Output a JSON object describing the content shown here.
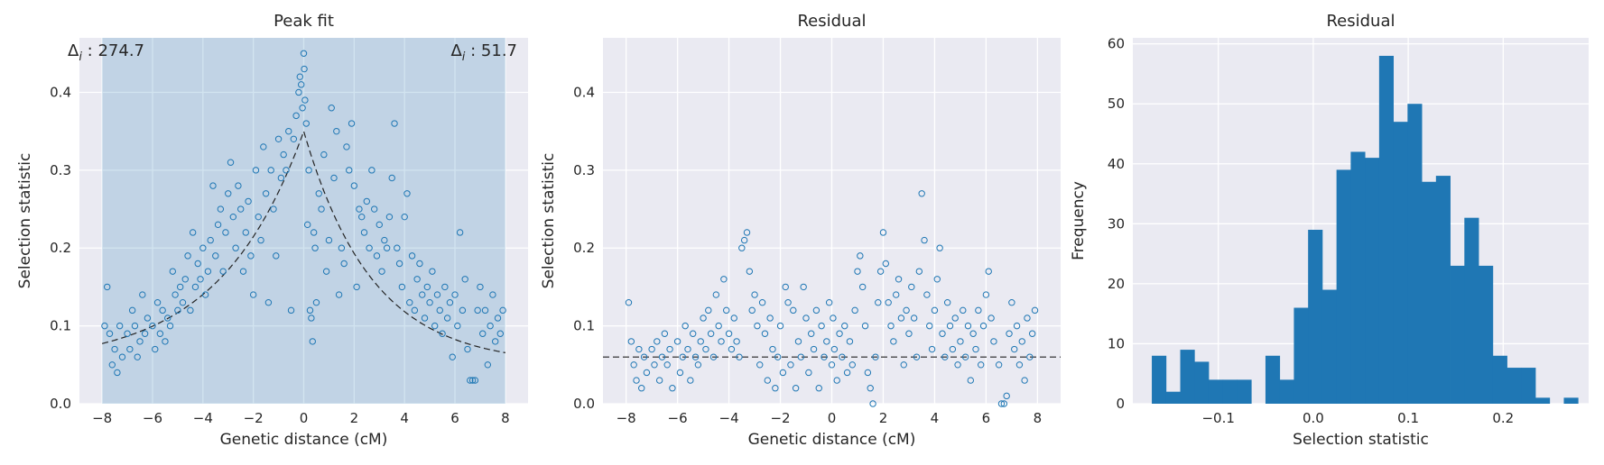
{
  "chart_data": [
    {
      "type": "scatter",
      "title": "Peak fit",
      "xlabel": "Genetic distance (cM)",
      "ylabel": "Selection statistic",
      "xlim": [
        -8.9,
        8.9
      ],
      "ylim": [
        0,
        0.47
      ],
      "xticks": [
        -8,
        -6,
        -4,
        -2,
        0,
        2,
        4,
        6,
        8
      ],
      "xtick_labels": [
        "−8",
        "−6",
        "−4",
        "−2",
        "0",
        "2",
        "4",
        "6",
        "8"
      ],
      "yticks": [
        0.0,
        0.1,
        0.2,
        0.3,
        0.4
      ],
      "ytick_labels": [
        "0.0",
        "0.1",
        "0.2",
        "0.3",
        "0.4"
      ],
      "grid": true,
      "shaded_region": [
        -8,
        8
      ],
      "annotations": [
        {
          "text": "Δ",
          "sub": "i",
          "rest": " : 274.7",
          "position": "top-left"
        },
        {
          "text": "Δ",
          "sub": "i",
          "rest": " : 51.7",
          "position": "top-right"
        }
      ],
      "fit_curve": {
        "style": "dashed",
        "color": "#222222",
        "peak_x": 0.0,
        "peak_y": 0.35,
        "baseline": 0.05,
        "decay_left": 0.3,
        "decay_right": 0.37
      },
      "points": [
        [
          -7.9,
          0.1
        ],
        [
          -7.8,
          0.15
        ],
        [
          -7.7,
          0.09
        ],
        [
          -7.6,
          0.05
        ],
        [
          -7.5,
          0.07
        ],
        [
          -7.4,
          0.04
        ],
        [
          -7.3,
          0.1
        ],
        [
          -7.2,
          0.06
        ],
        [
          -7.0,
          0.09
        ],
        [
          -6.9,
          0.07
        ],
        [
          -6.8,
          0.12
        ],
        [
          -6.7,
          0.1
        ],
        [
          -6.6,
          0.06
        ],
        [
          -6.5,
          0.08
        ],
        [
          -6.4,
          0.14
        ],
        [
          -6.3,
          0.09
        ],
        [
          -6.2,
          0.11
        ],
        [
          -6.0,
          0.1
        ],
        [
          -5.9,
          0.07
        ],
        [
          -5.8,
          0.13
        ],
        [
          -5.7,
          0.09
        ],
        [
          -5.6,
          0.12
        ],
        [
          -5.5,
          0.08
        ],
        [
          -5.4,
          0.11
        ],
        [
          -5.3,
          0.1
        ],
        [
          -5.2,
          0.17
        ],
        [
          -5.1,
          0.14
        ],
        [
          -5.0,
          0.12
        ],
        [
          -4.9,
          0.15
        ],
        [
          -4.8,
          0.13
        ],
        [
          -4.7,
          0.16
        ],
        [
          -4.6,
          0.19
        ],
        [
          -4.5,
          0.12
        ],
        [
          -4.4,
          0.22
        ],
        [
          -4.3,
          0.15
        ],
        [
          -4.2,
          0.18
        ],
        [
          -4.1,
          0.16
        ],
        [
          -4.0,
          0.2
        ],
        [
          -3.9,
          0.14
        ],
        [
          -3.8,
          0.17
        ],
        [
          -3.7,
          0.21
        ],
        [
          -3.6,
          0.28
        ],
        [
          -3.5,
          0.19
        ],
        [
          -3.4,
          0.23
        ],
        [
          -3.3,
          0.25
        ],
        [
          -3.2,
          0.17
        ],
        [
          -3.1,
          0.22
        ],
        [
          -3.0,
          0.27
        ],
        [
          -2.9,
          0.31
        ],
        [
          -2.8,
          0.24
        ],
        [
          -2.7,
          0.2
        ],
        [
          -2.6,
          0.28
        ],
        [
          -2.5,
          0.25
        ],
        [
          -2.4,
          0.17
        ],
        [
          -2.3,
          0.22
        ],
        [
          -2.2,
          0.26
        ],
        [
          -2.1,
          0.19
        ],
        [
          -2.0,
          0.14
        ],
        [
          -1.9,
          0.3
        ],
        [
          -1.8,
          0.24
        ],
        [
          -1.7,
          0.21
        ],
        [
          -1.6,
          0.33
        ],
        [
          -1.5,
          0.27
        ],
        [
          -1.4,
          0.13
        ],
        [
          -1.3,
          0.3
        ],
        [
          -1.2,
          0.25
        ],
        [
          -1.1,
          0.19
        ],
        [
          -1.0,
          0.34
        ],
        [
          -0.9,
          0.29
        ],
        [
          -0.8,
          0.32
        ],
        [
          -0.7,
          0.3
        ],
        [
          -0.6,
          0.35
        ],
        [
          -0.5,
          0.12
        ],
        [
          -0.4,
          0.34
        ],
        [
          -0.3,
          0.37
        ],
        [
          -0.2,
          0.4
        ],
        [
          -0.15,
          0.42
        ],
        [
          -0.1,
          0.41
        ],
        [
          -0.05,
          0.38
        ],
        [
          0.0,
          0.45
        ],
        [
          0.02,
          0.43
        ],
        [
          0.05,
          0.39
        ],
        [
          0.1,
          0.36
        ],
        [
          0.15,
          0.23
        ],
        [
          0.2,
          0.3
        ],
        [
          0.25,
          0.12
        ],
        [
          0.3,
          0.11
        ],
        [
          0.35,
          0.08
        ],
        [
          0.4,
          0.22
        ],
        [
          0.45,
          0.2
        ],
        [
          0.5,
          0.13
        ],
        [
          0.6,
          0.27
        ],
        [
          0.7,
          0.25
        ],
        [
          0.8,
          0.32
        ],
        [
          0.9,
          0.17
        ],
        [
          1.0,
          0.21
        ],
        [
          1.1,
          0.38
        ],
        [
          1.2,
          0.29
        ],
        [
          1.3,
          0.35
        ],
        [
          1.4,
          0.14
        ],
        [
          1.5,
          0.2
        ],
        [
          1.6,
          0.18
        ],
        [
          1.7,
          0.33
        ],
        [
          1.8,
          0.3
        ],
        [
          1.9,
          0.36
        ],
        [
          2.0,
          0.28
        ],
        [
          2.1,
          0.15
        ],
        [
          2.2,
          0.25
        ],
        [
          2.3,
          0.24
        ],
        [
          2.4,
          0.22
        ],
        [
          2.5,
          0.26
        ],
        [
          2.6,
          0.2
        ],
        [
          2.7,
          0.3
        ],
        [
          2.8,
          0.25
        ],
        [
          2.9,
          0.19
        ],
        [
          3.0,
          0.23
        ],
        [
          3.1,
          0.17
        ],
        [
          3.2,
          0.21
        ],
        [
          3.3,
          0.2
        ],
        [
          3.4,
          0.24
        ],
        [
          3.5,
          0.29
        ],
        [
          3.6,
          0.36
        ],
        [
          3.7,
          0.2
        ],
        [
          3.8,
          0.18
        ],
        [
          3.9,
          0.15
        ],
        [
          4.0,
          0.24
        ],
        [
          4.1,
          0.27
        ],
        [
          4.2,
          0.13
        ],
        [
          4.3,
          0.19
        ],
        [
          4.4,
          0.12
        ],
        [
          4.5,
          0.16
        ],
        [
          4.6,
          0.18
        ],
        [
          4.7,
          0.14
        ],
        [
          4.8,
          0.11
        ],
        [
          4.9,
          0.15
        ],
        [
          5.0,
          0.13
        ],
        [
          5.1,
          0.17
        ],
        [
          5.2,
          0.1
        ],
        [
          5.3,
          0.14
        ],
        [
          5.4,
          0.12
        ],
        [
          5.5,
          0.09
        ],
        [
          5.6,
          0.15
        ],
        [
          5.7,
          0.11
        ],
        [
          5.8,
          0.13
        ],
        [
          5.9,
          0.06
        ],
        [
          6.0,
          0.14
        ],
        [
          6.1,
          0.1
        ],
        [
          6.2,
          0.22
        ],
        [
          6.3,
          0.12
        ],
        [
          6.4,
          0.16
        ],
        [
          6.5,
          0.07
        ],
        [
          6.6,
          0.03
        ],
        [
          6.7,
          0.03
        ],
        [
          6.8,
          0.03
        ],
        [
          6.9,
          0.12
        ],
        [
          7.0,
          0.15
        ],
        [
          7.1,
          0.09
        ],
        [
          7.2,
          0.12
        ],
        [
          7.3,
          0.05
        ],
        [
          7.4,
          0.1
        ],
        [
          7.5,
          0.14
        ],
        [
          7.6,
          0.08
        ],
        [
          7.7,
          0.11
        ],
        [
          7.8,
          0.09
        ],
        [
          7.9,
          0.12
        ]
      ]
    },
    {
      "type": "scatter",
      "title": "Residual",
      "xlabel": "Genetic distance (cM)",
      "ylabel": "Selection statistic",
      "xlim": [
        -8.9,
        8.9
      ],
      "ylim": [
        0,
        0.47
      ],
      "xticks": [
        -8,
        -6,
        -4,
        -2,
        0,
        2,
        4,
        6,
        8
      ],
      "xtick_labels": [
        "−8",
        "−6",
        "−4",
        "−2",
        "0",
        "2",
        "4",
        "6",
        "8"
      ],
      "yticks": [
        0.0,
        0.1,
        0.2,
        0.3,
        0.4
      ],
      "ytick_labels": [
        "0.0",
        "0.1",
        "0.2",
        "0.3",
        "0.4"
      ],
      "grid": true,
      "hline": {
        "y": 0.06,
        "style": "dashed",
        "color": "#222222"
      },
      "points": [
        [
          -7.9,
          0.13
        ],
        [
          -7.8,
          0.08
        ],
        [
          -7.7,
          0.05
        ],
        [
          -7.6,
          0.03
        ],
        [
          -7.5,
          0.07
        ],
        [
          -7.4,
          0.02
        ],
        [
          -7.3,
          0.06
        ],
        [
          -7.2,
          0.04
        ],
        [
          -7.0,
          0.07
        ],
        [
          -6.9,
          0.05
        ],
        [
          -6.8,
          0.08
        ],
        [
          -6.7,
          0.03
        ],
        [
          -6.6,
          0.06
        ],
        [
          -6.5,
          0.09
        ],
        [
          -6.4,
          0.05
        ],
        [
          -6.3,
          0.07
        ],
        [
          -6.2,
          0.02
        ],
        [
          -6.0,
          0.08
        ],
        [
          -5.9,
          0.04
        ],
        [
          -5.8,
          0.06
        ],
        [
          -5.7,
          0.1
        ],
        [
          -5.6,
          0.07
        ],
        [
          -5.5,
          0.03
        ],
        [
          -5.4,
          0.09
        ],
        [
          -5.3,
          0.06
        ],
        [
          -5.2,
          0.05
        ],
        [
          -5.1,
          0.08
        ],
        [
          -5.0,
          0.11
        ],
        [
          -4.9,
          0.07
        ],
        [
          -4.8,
          0.12
        ],
        [
          -4.7,
          0.09
        ],
        [
          -4.6,
          0.06
        ],
        [
          -4.5,
          0.14
        ],
        [
          -4.4,
          0.1
        ],
        [
          -4.3,
          0.08
        ],
        [
          -4.2,
          0.16
        ],
        [
          -4.1,
          0.12
        ],
        [
          -4.0,
          0.09
        ],
        [
          -3.9,
          0.07
        ],
        [
          -3.8,
          0.11
        ],
        [
          -3.7,
          0.08
        ],
        [
          -3.6,
          0.06
        ],
        [
          -3.5,
          0.2
        ],
        [
          -3.4,
          0.21
        ],
        [
          -3.3,
          0.22
        ],
        [
          -3.2,
          0.17
        ],
        [
          -3.1,
          0.12
        ],
        [
          -3.0,
          0.14
        ],
        [
          -2.9,
          0.1
        ],
        [
          -2.8,
          0.05
        ],
        [
          -2.7,
          0.13
        ],
        [
          -2.6,
          0.09
        ],
        [
          -2.5,
          0.03
        ],
        [
          -2.4,
          0.11
        ],
        [
          -2.3,
          0.07
        ],
        [
          -2.2,
          0.02
        ],
        [
          -2.1,
          0.06
        ],
        [
          -2.0,
          0.1
        ],
        [
          -1.9,
          0.04
        ],
        [
          -1.8,
          0.15
        ],
        [
          -1.7,
          0.13
        ],
        [
          -1.6,
          0.05
        ],
        [
          -1.5,
          0.12
        ],
        [
          -1.4,
          0.02
        ],
        [
          -1.3,
          0.08
        ],
        [
          -1.2,
          0.06
        ],
        [
          -1.1,
          0.15
        ],
        [
          -1.0,
          0.11
        ],
        [
          -0.9,
          0.04
        ],
        [
          -0.8,
          0.09
        ],
        [
          -0.7,
          0.07
        ],
        [
          -0.6,
          0.12
        ],
        [
          -0.5,
          0.02
        ],
        [
          -0.4,
          0.1
        ],
        [
          -0.3,
          0.06
        ],
        [
          -0.2,
          0.08
        ],
        [
          -0.1,
          0.13
        ],
        [
          0.0,
          0.05
        ],
        [
          0.05,
          0.11
        ],
        [
          0.1,
          0.07
        ],
        [
          0.2,
          0.03
        ],
        [
          0.3,
          0.09
        ],
        [
          0.4,
          0.06
        ],
        [
          0.5,
          0.1
        ],
        [
          0.6,
          0.04
        ],
        [
          0.7,
          0.08
        ],
        [
          0.8,
          0.05
        ],
        [
          0.9,
          0.12
        ],
        [
          1.0,
          0.17
        ],
        [
          1.1,
          0.19
        ],
        [
          1.2,
          0.15
        ],
        [
          1.3,
          0.1
        ],
        [
          1.4,
          0.04
        ],
        [
          1.5,
          0.02
        ],
        [
          1.6,
          0.0
        ],
        [
          1.7,
          0.06
        ],
        [
          1.8,
          0.13
        ],
        [
          1.9,
          0.17
        ],
        [
          2.0,
          0.22
        ],
        [
          2.1,
          0.18
        ],
        [
          2.2,
          0.13
        ],
        [
          2.3,
          0.1
        ],
        [
          2.4,
          0.08
        ],
        [
          2.5,
          0.14
        ],
        [
          2.6,
          0.16
        ],
        [
          2.7,
          0.11
        ],
        [
          2.8,
          0.05
        ],
        [
          2.9,
          0.12
        ],
        [
          3.0,
          0.09
        ],
        [
          3.1,
          0.15
        ],
        [
          3.2,
          0.11
        ],
        [
          3.3,
          0.06
        ],
        [
          3.4,
          0.17
        ],
        [
          3.5,
          0.27
        ],
        [
          3.6,
          0.21
        ],
        [
          3.7,
          0.14
        ],
        [
          3.8,
          0.1
        ],
        [
          3.9,
          0.07
        ],
        [
          4.0,
          0.12
        ],
        [
          4.1,
          0.16
        ],
        [
          4.2,
          0.2
        ],
        [
          4.3,
          0.09
        ],
        [
          4.4,
          0.06
        ],
        [
          4.5,
          0.13
        ],
        [
          4.6,
          0.1
        ],
        [
          4.7,
          0.07
        ],
        [
          4.8,
          0.11
        ],
        [
          4.9,
          0.05
        ],
        [
          5.0,
          0.08
        ],
        [
          5.1,
          0.12
        ],
        [
          5.2,
          0.06
        ],
        [
          5.3,
          0.1
        ],
        [
          5.4,
          0.03
        ],
        [
          5.5,
          0.09
        ],
        [
          5.6,
          0.07
        ],
        [
          5.7,
          0.12
        ],
        [
          5.8,
          0.05
        ],
        [
          5.9,
          0.1
        ],
        [
          6.0,
          0.14
        ],
        [
          6.1,
          0.17
        ],
        [
          6.2,
          0.11
        ],
        [
          6.3,
          0.08
        ],
        [
          6.5,
          0.05
        ],
        [
          6.6,
          0.0
        ],
        [
          6.7,
          0.0
        ],
        [
          6.8,
          0.01
        ],
        [
          6.9,
          0.09
        ],
        [
          7.0,
          0.13
        ],
        [
          7.1,
          0.07
        ],
        [
          7.2,
          0.1
        ],
        [
          7.3,
          0.05
        ],
        [
          7.4,
          0.08
        ],
        [
          7.5,
          0.03
        ],
        [
          7.6,
          0.11
        ],
        [
          7.7,
          0.06
        ],
        [
          7.8,
          0.09
        ],
        [
          7.9,
          0.12
        ]
      ]
    },
    {
      "type": "bar",
      "subtype": "histogram",
      "title": "Residual",
      "xlabel": "Selection statistic",
      "ylabel": "Frequency",
      "xlim": [
        -0.19,
        0.29
      ],
      "ylim": [
        0,
        61
      ],
      "xticks": [
        -0.1,
        0.0,
        0.1,
        0.2
      ],
      "xtick_labels": [
        "−0.1",
        "0.0",
        "0.1",
        "0.2"
      ],
      "yticks": [
        0,
        10,
        20,
        30,
        40,
        50,
        60
      ],
      "ytick_labels": [
        "0",
        "10",
        "20",
        "30",
        "40",
        "50",
        "60"
      ],
      "grid": true,
      "bin_start": -0.17,
      "bin_width": 0.01496,
      "counts": [
        8,
        2,
        9,
        7,
        4,
        4,
        4,
        0,
        8,
        4,
        16,
        29,
        19,
        39,
        42,
        41,
        58,
        47,
        50,
        37,
        38,
        23,
        31,
        23,
        8,
        6,
        6,
        1,
        0,
        1
      ],
      "color": "#1f77b4"
    }
  ]
}
